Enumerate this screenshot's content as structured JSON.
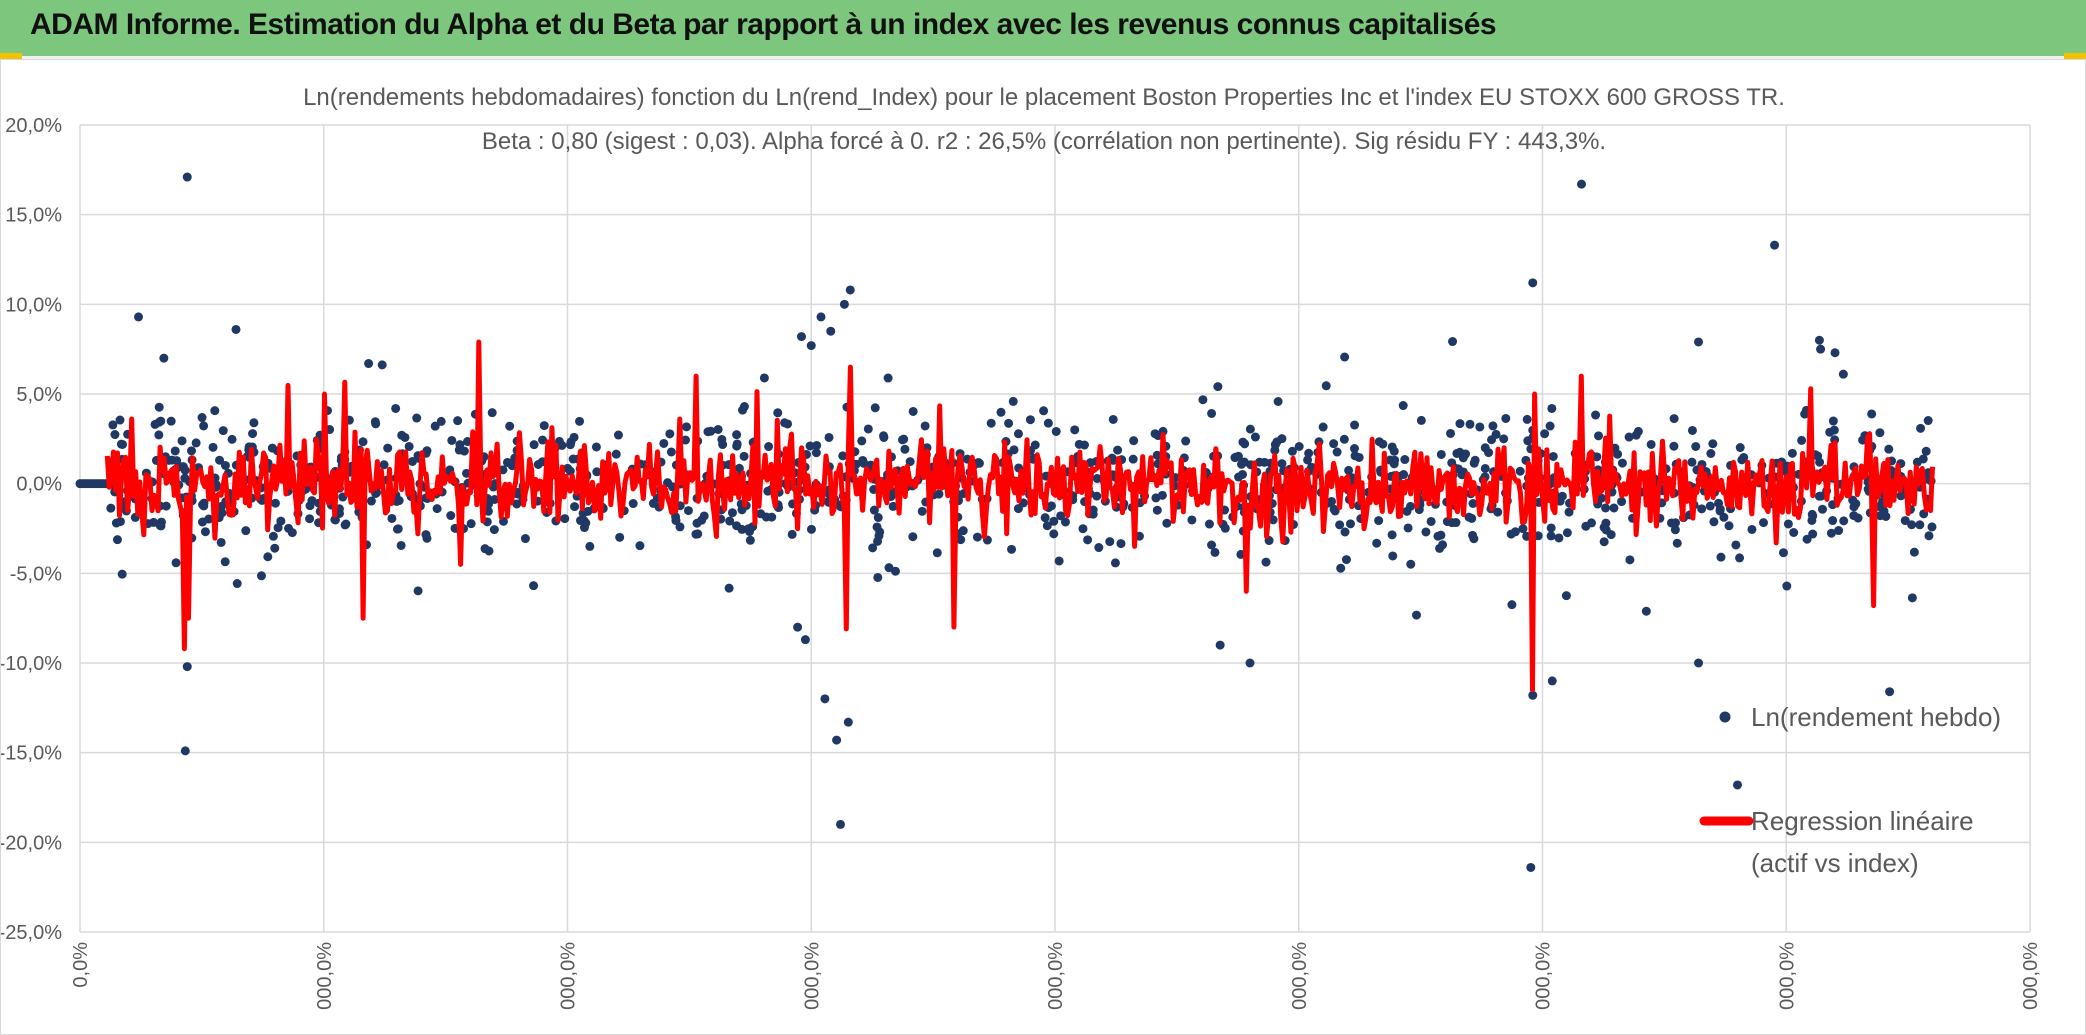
{
  "report": {
    "title": "ADAM Informe. Estimation du Alpha et du Beta par rapport à un index avec les revenus connus capitalisés"
  },
  "colors": {
    "banner": "#7dc67d",
    "points": "#203864",
    "regression": "#ff0000",
    "grid": "#d9d9d9",
    "accent": "#f2c200"
  },
  "chart_data": {
    "type": "scatter",
    "title_line1": "Ln(rendements hebdomadaires) fonction du Ln(rend_Index) pour le placement Boston Properties Inc et l'index EU STOXX 600 GROSS TR.",
    "title_line2": "Beta : 0,80 (sigest : 0,03). Alpha forcé à 0. r2 : 26,5% (corrélation non pertinente). Sig résidu FY : 443,3%.",
    "ylim": [
      -0.25,
      0.2
    ],
    "y_ticks": [
      "20,0%",
      "15,0%",
      "10,0%",
      "5,0%",
      "0,0%",
      "-5,0%",
      "-10,0%",
      "-15,0%",
      "-20,0%",
      "-25,0%"
    ],
    "x_ticks": [
      "0,0%",
      "000,0%",
      "000,0%",
      "000,0%",
      "000,0%",
      "000,0%",
      "000,0%",
      "000,0%",
      "000,0%"
    ],
    "grid": true,
    "legend_position": "right",
    "series": [
      {
        "name": "Ln(rendement hebdo)",
        "kind": "points",
        "color": "#203864",
        "seed": 17,
        "n": 1200,
        "xrange": [
          0.0,
          0.95
        ],
        "outliers": [
          [
            0.055,
            0.171
          ],
          [
            0.054,
            -0.149
          ],
          [
            0.055,
            -0.102
          ],
          [
            0.03,
            0.093
          ],
          [
            0.08,
            0.086
          ],
          [
            0.043,
            0.07
          ],
          [
            0.148,
            0.067
          ],
          [
            0.37,
            0.082
          ],
          [
            0.375,
            0.077
          ],
          [
            0.392,
            0.1
          ],
          [
            0.38,
            0.093
          ],
          [
            0.395,
            0.108
          ],
          [
            0.385,
            0.085
          ],
          [
            0.39,
            -0.19
          ],
          [
            0.388,
            -0.143
          ],
          [
            0.394,
            -0.133
          ],
          [
            0.382,
            -0.12
          ],
          [
            0.372,
            -0.087
          ],
          [
            0.368,
            -0.08
          ],
          [
            0.6,
            -0.1
          ],
          [
            0.77,
            0.167
          ],
          [
            0.745,
            0.112
          ],
          [
            0.744,
            -0.214
          ],
          [
            0.745,
            -0.118
          ],
          [
            0.755,
            -0.11
          ],
          [
            0.83,
            -0.1
          ],
          [
            0.85,
            -0.168
          ],
          [
            0.83,
            0.079
          ],
          [
            0.869,
            0.133
          ],
          [
            0.892,
            0.08
          ],
          [
            0.9,
            0.073
          ],
          [
            0.928,
            -0.116
          ]
        ]
      },
      {
        "name": "Regression linéaire (actif vs index)",
        "kind": "line",
        "color": "#ff0000",
        "seed": 29,
        "n": 900,
        "xrange": [
          0.014,
          0.95
        ],
        "spikes": [
          [
            0.054,
            -0.092
          ],
          [
            0.056,
            -0.075
          ],
          [
            0.125,
            0.05
          ],
          [
            0.145,
            -0.075
          ],
          [
            0.195,
            0.068
          ],
          [
            0.205,
            0.079
          ],
          [
            0.195,
            -0.045
          ],
          [
            0.395,
            0.065
          ],
          [
            0.393,
            -0.081
          ],
          [
            0.448,
            -0.08
          ],
          [
            0.598,
            -0.06
          ],
          [
            0.745,
            -0.115
          ],
          [
            0.746,
            0.05
          ],
          [
            0.77,
            0.06
          ],
          [
            0.92,
            -0.068
          ]
        ]
      }
    ],
    "legend": [
      {
        "label": "Ln(rendement hebdo)",
        "marker": "dot"
      },
      {
        "label_line1": "Regression linéaire",
        "label_line2": "(actif vs index)",
        "marker": "line"
      }
    ]
  }
}
